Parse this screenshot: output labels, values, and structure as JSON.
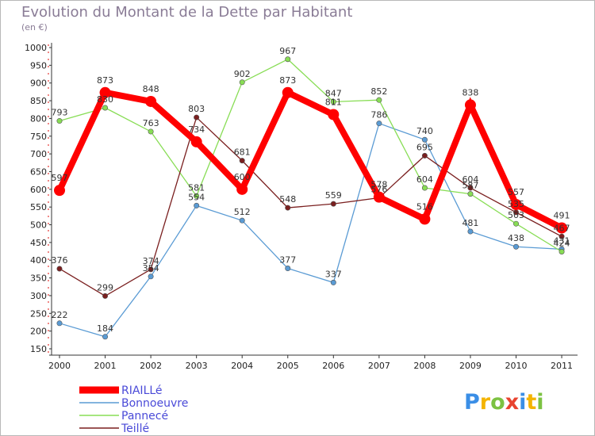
{
  "chart_data": {
    "type": "line",
    "title": "Evolution du Montant de la Dette par Habitant",
    "subtitle": "(en €)",
    "x": [
      "2000",
      "2001",
      "2002",
      "2003",
      "2004",
      "2005",
      "2006",
      "2007",
      "2008",
      "2009",
      "2010",
      "2011"
    ],
    "ylim": [
      150,
      1000
    ],
    "yticks": [
      150,
      200,
      250,
      300,
      350,
      400,
      450,
      500,
      550,
      600,
      650,
      700,
      750,
      800,
      850,
      900,
      950,
      1000
    ],
    "grid": false,
    "legend_position": "bottom-left",
    "series": [
      {
        "name": "RIAILLé",
        "color": "#ff0000",
        "values": [
          597,
          873,
          848,
          734,
          600,
          873,
          811,
          578,
          516,
          838,
          557,
          491
        ],
        "labels": [
          "597",
          "873",
          "848",
          "734",
          "600",
          "873",
          "811",
          "578",
          "516",
          "838",
          "557",
          "491"
        ]
      },
      {
        "name": "Bonnoeuvre",
        "color": "#5a9bd4",
        "values": [
          222,
          184,
          354,
          554,
          512,
          377,
          337,
          786,
          740,
          481,
          438,
          431
        ],
        "labels": [
          "222",
          "184",
          "354",
          "554",
          "512",
          "377",
          "337",
          "786",
          "740",
          "481",
          "438",
          "431"
        ]
      },
      {
        "name": "Pannecé",
        "color": "#88dd55",
        "values": [
          793,
          830,
          763,
          581,
          902,
          967,
          847,
          852,
          604,
          587,
          503,
          424
        ],
        "labels": [
          "793",
          "830",
          "763",
          "581",
          "902",
          "967",
          "847",
          "852",
          "604",
          "587",
          "503",
          "424"
        ]
      },
      {
        "name": "Teillé",
        "color": "#7a1f1f",
        "values": [
          376,
          299,
          374,
          803,
          681,
          548,
          559,
          576,
          695,
          604,
          535,
          467
        ],
        "labels": [
          "376",
          "299",
          "374",
          "803",
          "681",
          "548",
          "559",
          "576",
          "695",
          "604",
          "535",
          "467"
        ]
      }
    ]
  },
  "branding": {
    "logo_letters": [
      "P",
      "r",
      "o",
      "x",
      "i",
      "t",
      "i"
    ],
    "logo_colors": [
      "#3a8ee6",
      "#f4b400",
      "#7cc242",
      "#e8432f",
      "#3a8ee6",
      "#f4b400",
      "#7cc242"
    ]
  }
}
